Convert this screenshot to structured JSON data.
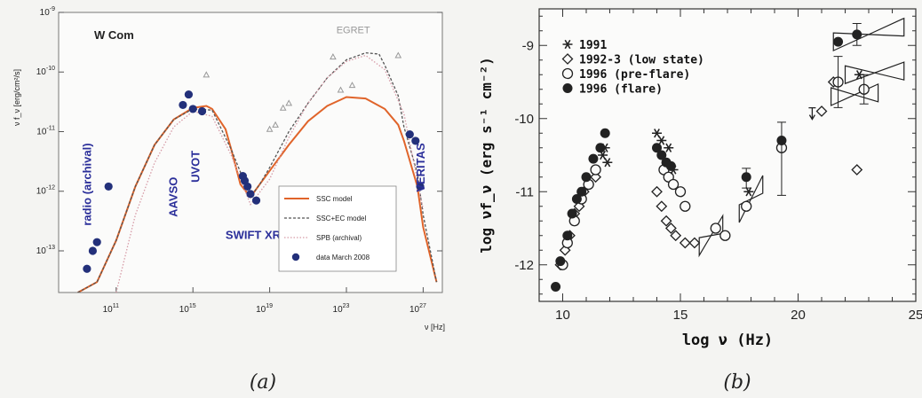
{
  "figure": {
    "captions": [
      "(a)",
      "(b)"
    ],
    "palette": {
      "background": "#f4f4f2",
      "ink": "#111111",
      "label_blue": "#2b2f9a",
      "model_orange": "#e0642a",
      "ssc_ec_gray": "#555555",
      "spb_pink": "#d69aa6",
      "egret_gray": "#999999",
      "points_navy": "#23307a"
    }
  },
  "chart_data": [
    {
      "type": "scatter",
      "title": "W Com",
      "xlabel": "ν [Hz]",
      "ylabel": "ν f_ν [erg/cm²/s]",
      "xscale": "log",
      "yscale": "log",
      "xlim": [
        100000000.0,
        1e+28
      ],
      "ylim": [
        2e-14,
        1e-09
      ],
      "xtick_labels": [
        "10^11",
        "10^15",
        "10^19",
        "10^23",
        "10^27"
      ],
      "ytick_labels": [
        "10^-9",
        "10^-10",
        "10^-11",
        "10^-12",
        "10^-13"
      ],
      "annotations": [
        {
          "text": "radio (archival)",
          "x": 5000000000.0,
          "y": 1.3e-12,
          "rotation": -90,
          "color": "#2b2f9a"
        },
        {
          "text": "UVOT",
          "x": 2200000000000000.0,
          "y": 2.6e-12,
          "rotation": -90,
          "color": "#2b2f9a"
        },
        {
          "text": "AAVSO",
          "x": 150000000000000.0,
          "y": 8e-13,
          "rotation": -90,
          "color": "#2b2f9a"
        },
        {
          "text": "SWIFT XRT",
          "x": 5e+16,
          "y": 1.6e-13,
          "rotation": 0,
          "color": "#2b2f9a"
        },
        {
          "text": "EGRET",
          "x": 3e+22,
          "y": 4.5e-10,
          "rotation": 0,
          "color": "#999999"
        },
        {
          "text": "VERITAS",
          "x": 1.2e+27,
          "y": 2.5e-12,
          "rotation": -90,
          "color": "#2b2f9a"
        }
      ],
      "legend": {
        "position": "bottom-right",
        "entries": [
          {
            "label": "SSC model",
            "style": "solid",
            "color": "#e0642a"
          },
          {
            "label": "SSC+EC model",
            "style": "dashed",
            "color": "#555555"
          },
          {
            "label": "SPB (archival)",
            "style": "dotted",
            "color": "#d69aa6"
          },
          {
            "label": "data March 2008",
            "style": "marker",
            "color": "#23307a"
          }
        ]
      },
      "series": [
        {
          "name": "data March 2008",
          "kind": "points",
          "color": "#23307a",
          "x": [
            3000000000.0,
            6000000000.0,
            10000000000.0,
            40000000000.0,
            300000000000000.0,
            600000000000000.0,
            1000000000000000.0,
            3000000000000000.0,
            4e+17,
            5e+17,
            7e+17,
            1e+18,
            2e+18,
            2e+26,
            4e+26,
            7e+26
          ],
          "y": [
            5e-14,
            1e-13,
            1.4e-13,
            1.2e-12,
            2.8e-11,
            4.2e-11,
            2.4e-11,
            2.2e-11,
            1.8e-12,
            1.5e-12,
            1.2e-12,
            9e-13,
            7e-13,
            9e-12,
            7e-12,
            1.2e-12
          ]
        },
        {
          "name": "EGRET",
          "kind": "triangles",
          "color": "#999999",
          "x": [
            5000000000000000.0,
            1e+19,
            2e+19,
            5e+19,
            1e+20,
            2e+22,
            5e+22,
            2e+23,
            5e+25
          ],
          "y": [
            9e-11,
            1.1e-11,
            1.3e-11,
            2.5e-11,
            3e-11,
            1.8e-10,
            5e-11,
            6e-11,
            1.9e-10
          ]
        },
        {
          "name": "SSC model",
          "kind": "line",
          "style": "solid",
          "color": "#e0642a",
          "x": [
            1000000000.0,
            10000000000.0,
            100000000000.0,
            1000000000000.0,
            10000000000000.0,
            100000000000000.0,
            1000000000000000.0,
            5000000000000000.0,
            1e+16,
            5e+16,
            1e+17,
            3e+17,
            1e+18,
            3e+18,
            1e+19,
            1e+20,
            1e+21,
            1e+22,
            1e+23,
            1e+24,
            1e+25,
            5e+25,
            1e+26,
            5e+26,
            1e+27,
            5e+27
          ],
          "y": [
            2e-14,
            3e-14,
            1.5e-13,
            1.2e-12,
            6e-12,
            1.6e-11,
            2.5e-11,
            2.7e-11,
            2.4e-11,
            1.1e-11,
            5e-12,
            1.3e-12,
            8e-13,
            1.3e-12,
            2.2e-12,
            6e-12,
            1.5e-11,
            2.7e-11,
            3.8e-11,
            3.6e-11,
            2.4e-11,
            1.3e-11,
            7e-12,
            1.2e-12,
            2.5e-13,
            3e-14
          ]
        },
        {
          "name": "SSC+EC model",
          "kind": "line",
          "style": "dashed",
          "color": "#555555",
          "x": [
            1000000000.0,
            10000000000.0,
            100000000000.0,
            1000000000000.0,
            10000000000000.0,
            100000000000000.0,
            1000000000000000.0,
            1e+16,
            1e+17,
            1e+18,
            3e+18,
            1e+19,
            1e+20,
            1e+21,
            1e+22,
            1e+23,
            1e+24,
            5e+24,
            1e+25,
            5e+25,
            1e+26,
            5e+26,
            1e+27,
            5e+27
          ],
          "y": [
            2e-14,
            3e-14,
            1.5e-13,
            1.2e-12,
            6e-12,
            1.6e-11,
            2.4e-11,
            2.3e-11,
            5e-12,
            8e-13,
            1.3e-12,
            2.5e-12,
            1e-11,
            3e-11,
            8e-11,
            1.6e-10,
            2.1e-10,
            2e-10,
            1.3e-10,
            4e-11,
            1.2e-11,
            2e-12,
            4e-13,
            3e-14
          ]
        },
        {
          "name": "SPB (archival)",
          "kind": "line",
          "style": "dotted",
          "color": "#d69aa6",
          "x": [
            100000000000.0,
            1000000000000.0,
            10000000000000.0,
            100000000000000.0,
            1000000000000000.0,
            1e+16,
            1e+17,
            1e+18,
            1e+19,
            1e+20,
            1e+21,
            1e+22,
            1e+23,
            1e+24,
            1e+25,
            1e+26,
            1e+27
          ],
          "y": [
            2e-14,
            4e-13,
            3e-12,
            1.2e-11,
            2.2e-11,
            1.8e-11,
            4e-12,
            6e-13,
            1.6e-12,
            8e-12,
            3e-11,
            8e-11,
            1.5e-10,
            1.9e-10,
            1.1e-10,
            2e-11,
            5e-13
          ]
        }
      ]
    },
    {
      "type": "scatter",
      "xlabel": "log ν   (Hz)",
      "ylabel": "log νf_ν   (erg s⁻¹ cm⁻²)",
      "xlim": [
        9,
        25
      ],
      "ylim": [
        -12.5,
        -8.5
      ],
      "xticks": [
        10,
        15,
        20,
        25
      ],
      "yticks": [
        -9,
        -10,
        -11,
        -12
      ],
      "legend": {
        "position": "top-left",
        "entries": [
          {
            "label": "1991",
            "marker": "asterisk"
          },
          {
            "label": "1992-3 (low state)",
            "marker": "open-diamond"
          },
          {
            "label": "1996 (pre-flare)",
            "marker": "open-circle"
          },
          {
            "label": "1996 (flare)",
            "marker": "filled-circle"
          }
        ]
      },
      "series": [
        {
          "name": "1991",
          "marker": "asterisk",
          "x": [
            11.7,
            11.8,
            11.9,
            14.0,
            14.2,
            14.5,
            14.7,
            17.9,
            22.6
          ],
          "y": [
            -10.5,
            -10.4,
            -10.6,
            -10.2,
            -10.3,
            -10.4,
            -10.7,
            -11.0,
            -9.4
          ]
        },
        {
          "name": "1992-3 (low state)",
          "marker": "open-diamond",
          "x": [
            9.9,
            10.1,
            10.3,
            10.5,
            10.7,
            10.9,
            11.1,
            11.4,
            14.0,
            14.2,
            14.4,
            14.6,
            14.8,
            15.2,
            15.6,
            21.0,
            21.5,
            22.5
          ],
          "y": [
            -12.0,
            -11.8,
            -11.6,
            -11.3,
            -11.2,
            -11.0,
            -10.9,
            -10.8,
            -11.0,
            -11.2,
            -11.4,
            -11.5,
            -11.6,
            -11.7,
            -11.7,
            -9.9,
            -9.5,
            -10.7
          ]
        },
        {
          "name": "1996 (pre-flare)",
          "marker": "open-circle",
          "x": [
            10.0,
            10.2,
            10.5,
            10.8,
            11.1,
            11.4,
            14.3,
            14.5,
            14.7,
            15.0,
            15.2,
            16.5,
            16.9,
            17.8,
            19.3,
            21.7,
            22.8
          ],
          "y": [
            -12.0,
            -11.7,
            -11.4,
            -11.1,
            -10.9,
            -10.7,
            -10.7,
            -10.8,
            -10.9,
            -11.0,
            -11.2,
            -11.5,
            -11.6,
            -11.2,
            -10.4,
            -9.5,
            -9.6
          ]
        },
        {
          "name": "1996 (flare)",
          "marker": "filled-circle",
          "x": [
            9.7,
            9.9,
            10.2,
            10.4,
            10.6,
            10.8,
            11.0,
            11.3,
            11.6,
            11.8,
            14.0,
            14.2,
            14.4,
            14.6,
            17.8,
            19.3,
            21.7,
            22.5
          ],
          "y": [
            -12.3,
            -11.95,
            -11.6,
            -11.3,
            -11.1,
            -11.0,
            -10.8,
            -10.55,
            -10.4,
            -10.2,
            -10.4,
            -10.5,
            -10.6,
            -10.65,
            -10.8,
            -10.3,
            -8.95,
            -8.85
          ]
        },
        {
          "name": "upper limit",
          "marker": "down-arrow",
          "x": [
            20.6
          ],
          "y": [
            -9.95
          ]
        }
      ],
      "bowties": [
        {
          "x": [
            17.5,
            18.5
          ],
          "y": [
            -11.3,
            -10.9
          ]
        },
        {
          "x": [
            15.8,
            16.8
          ],
          "y": [
            -11.75,
            -11.45
          ]
        },
        {
          "x": [
            21.4,
            23.4
          ],
          "y": [
            -9.7,
            -9.65
          ]
        },
        {
          "x": [
            22.0,
            24.5
          ],
          "y": [
            -9.4,
            -9.35
          ]
        },
        {
          "x": [
            21.5,
            24.5
          ],
          "y": [
            -8.95,
            -8.75
          ]
        }
      ]
    }
  ]
}
